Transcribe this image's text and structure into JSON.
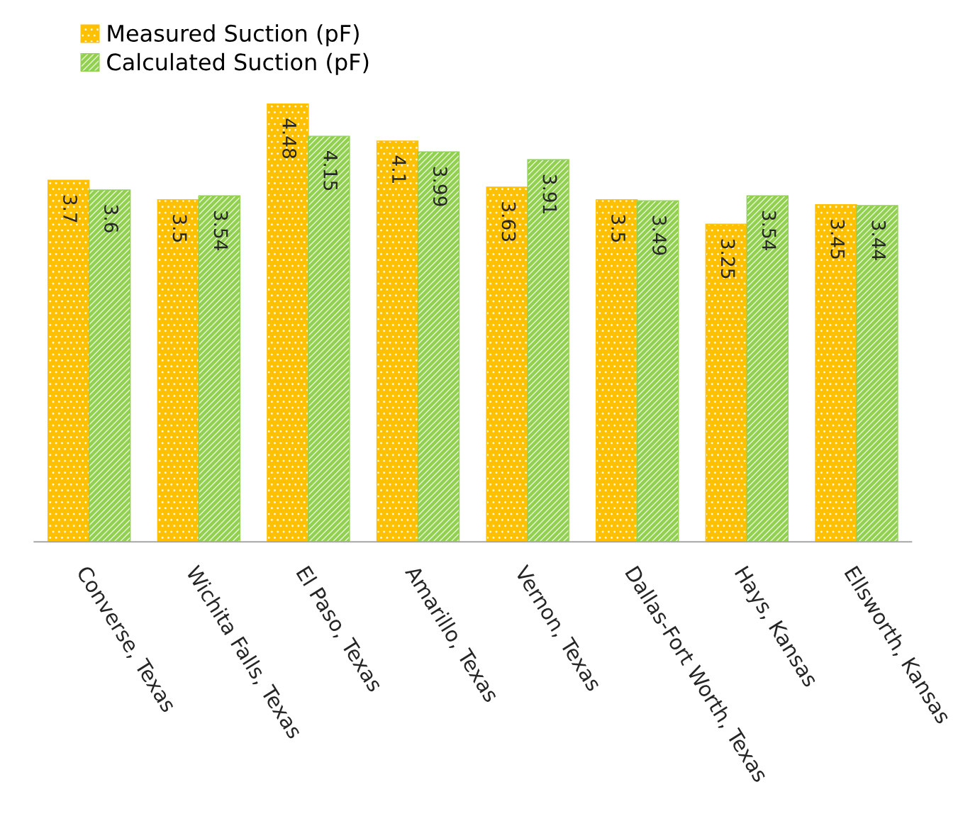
{
  "chart_data": {
    "type": "bar",
    "categories": [
      "Converse, Texas",
      "Wichita Falls, Texas",
      "El Paso, Texas",
      "Amarillo, Texas",
      "Vernon, Texas",
      "Dallas-Fort Worth, Texas",
      "Hays, Kansas",
      "Ellsworth, Kansas"
    ],
    "series": [
      {
        "name": "Measured Suction (pF)",
        "color": "#ffc000",
        "values": [
          3.7,
          3.5,
          4.48,
          4.1,
          3.63,
          3.5,
          3.25,
          3.45
        ]
      },
      {
        "name": "Calculated Suction (pF)",
        "color": "#92d050",
        "values": [
          3.6,
          3.54,
          4.15,
          3.99,
          3.91,
          3.49,
          3.54,
          3.44
        ]
      }
    ],
    "data_labels": true,
    "legend": "top left",
    "tick_labels": "x"
  }
}
